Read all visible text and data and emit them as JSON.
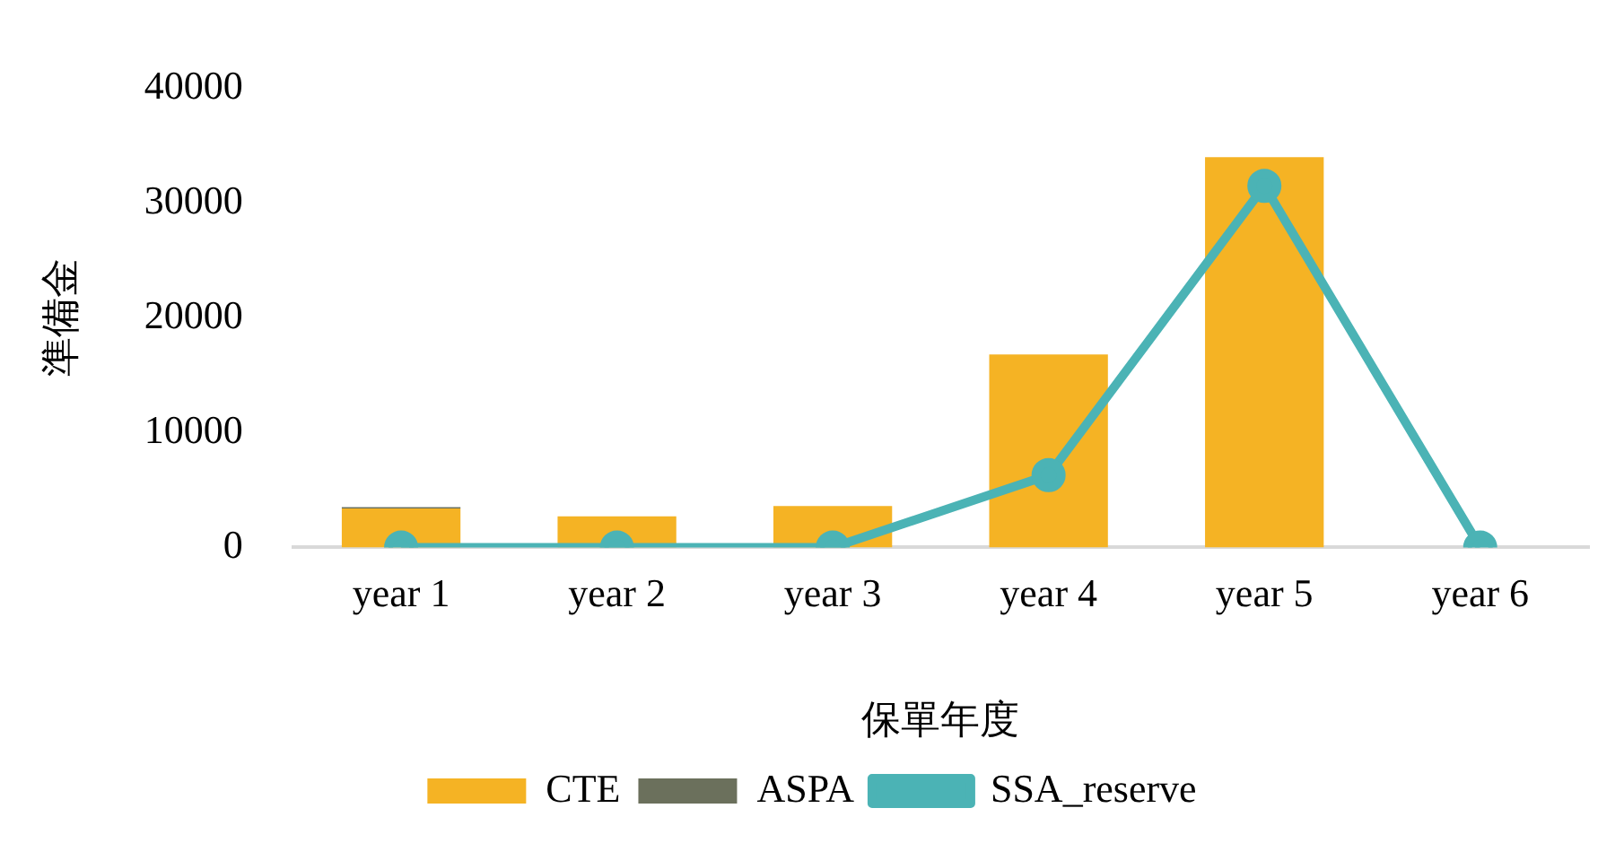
{
  "chart_data": {
    "type": "bar",
    "stacked": true,
    "xlabel": "保單年度",
    "ylabel": "準備金",
    "categories": [
      "year 1",
      "year 2",
      "year 3",
      "year 4",
      "year 5",
      "year 6"
    ],
    "series": [
      {
        "name": "CTE",
        "color": "#f5b324",
        "values": [
          3400,
          2700,
          3600,
          16800,
          34000,
          0
        ]
      },
      {
        "name": "ASPA",
        "color": "#6b705c",
        "values": [
          100,
          0,
          0,
          0,
          0,
          0
        ]
      },
      {
        "name": "SSA_reserve",
        "type": "line",
        "color": "#4bb3b5",
        "values": [
          0,
          0,
          0,
          6300,
          31500,
          0
        ],
        "marker": "circle"
      }
    ],
    "ylim": [
      0,
      40000
    ],
    "yticks": [
      0,
      10000,
      20000,
      30000,
      40000
    ],
    "grid": false,
    "legend": "bottom"
  }
}
